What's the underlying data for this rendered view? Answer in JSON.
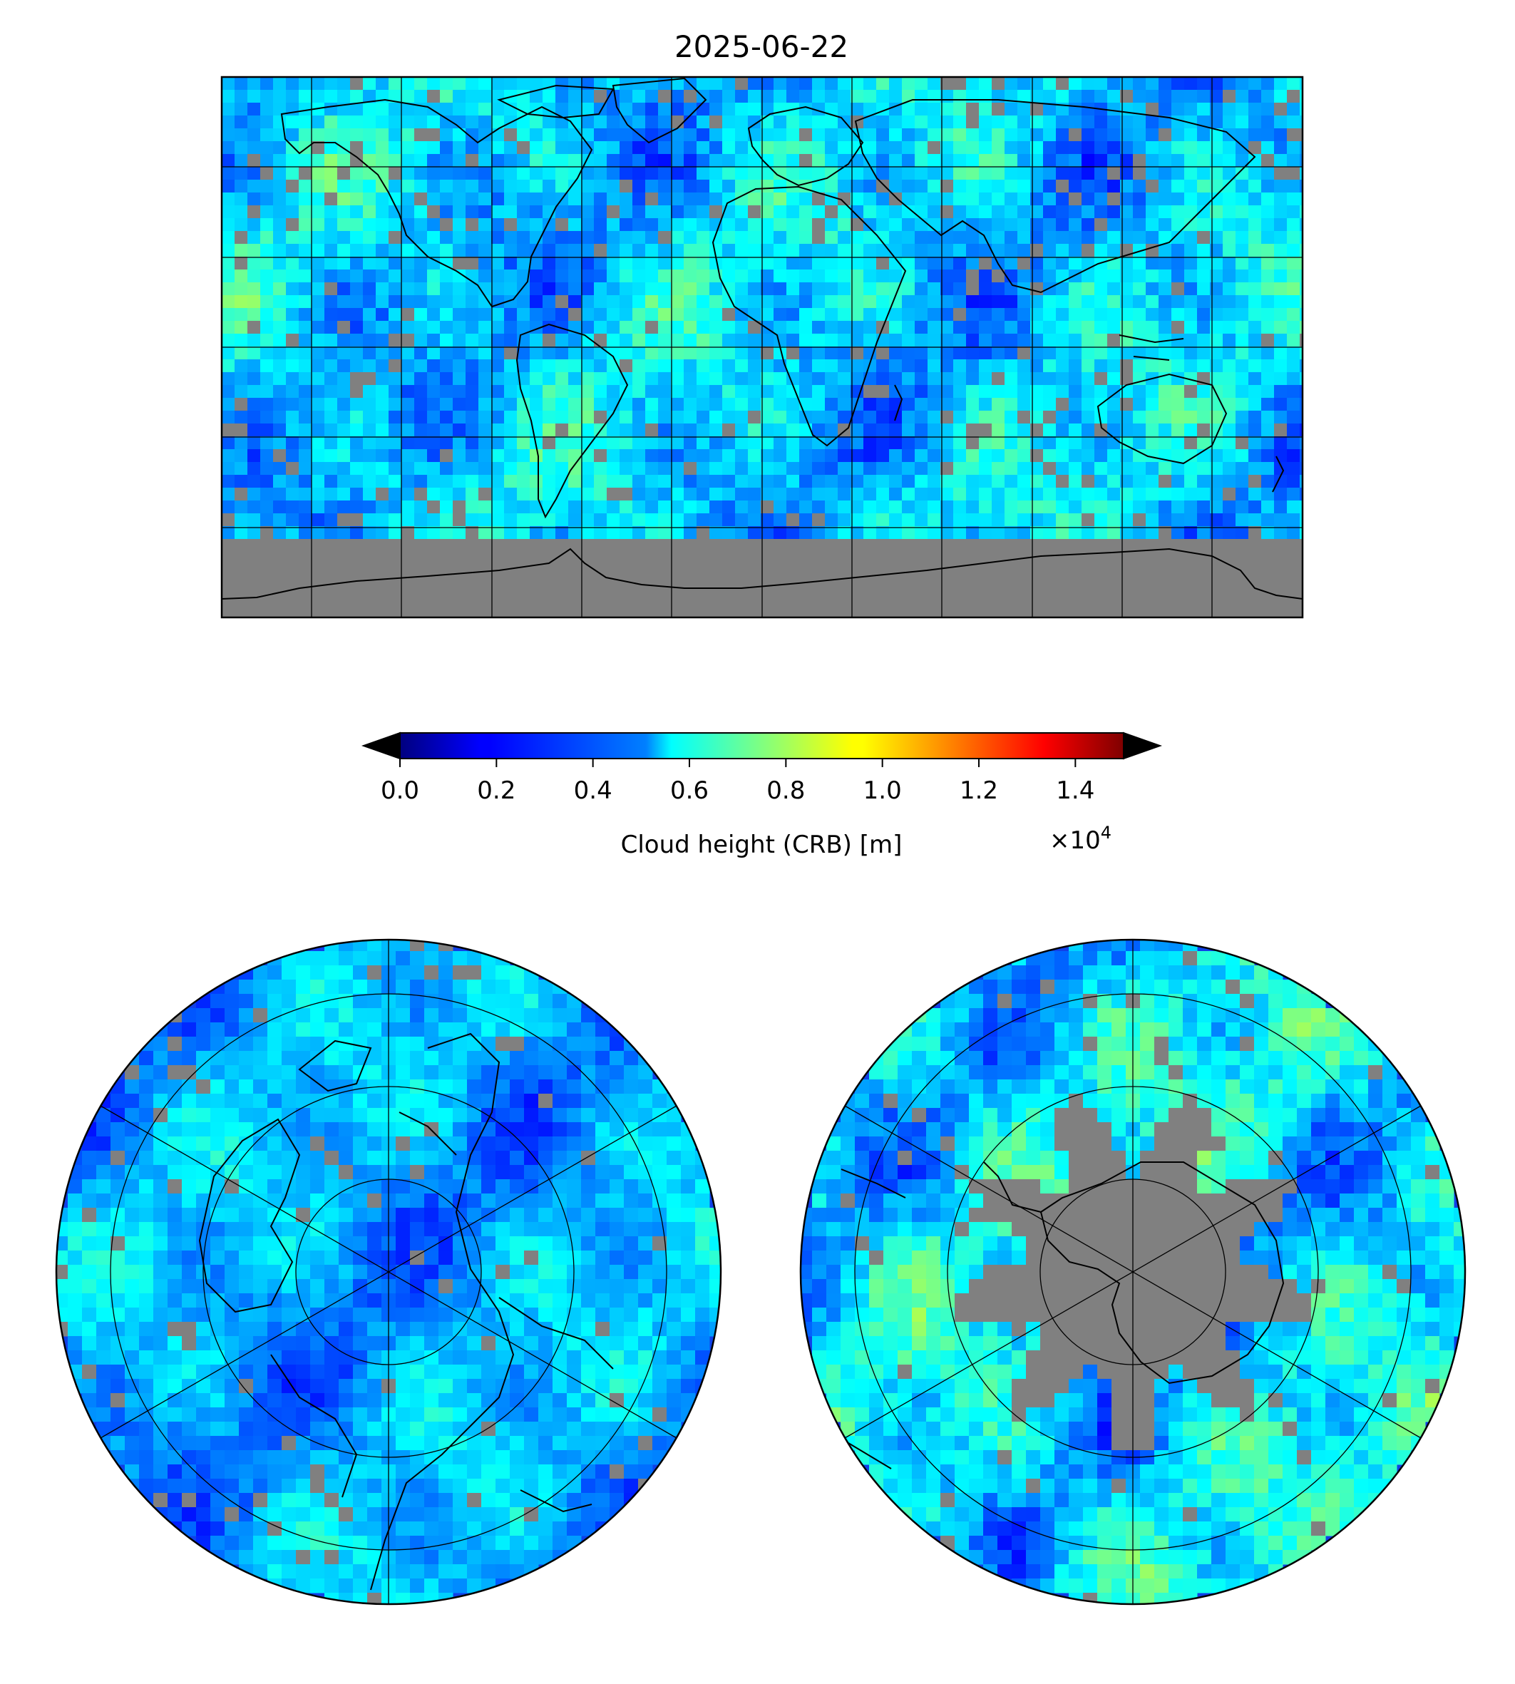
{
  "title": "2025-06-22",
  "colorbar": {
    "label": "Cloud height (CRB) [m]",
    "multiplier": "×10",
    "multiplier_exponent": "4",
    "ticks": [
      "0.0",
      "0.2",
      "0.4",
      "0.6",
      "0.8",
      "1.0",
      "1.2",
      "1.4"
    ],
    "tick_values": [
      0.0,
      0.2,
      0.4,
      0.6,
      0.8,
      1.0,
      1.2,
      1.4
    ],
    "range": [
      0.0,
      1.5
    ],
    "under_color": "#c0c0c0",
    "over_color": "#404040",
    "colormap": "jet"
  },
  "colors": {
    "no_data": "#808080",
    "coastline": "#000000",
    "gridline": "#000000"
  },
  "chart_data": [
    {
      "type": "heatmap",
      "projection": "equirectangular",
      "title": "2025-06-22",
      "variable": "Cloud height (CRB) [m]",
      "lon_range": [
        -180,
        180
      ],
      "lat_range": [
        -90,
        90
      ],
      "grid": true,
      "meridians_every_deg": 30,
      "parallels_every_deg": 30,
      "value_range": [
        0,
        15000
      ]
    },
    {
      "type": "heatmap",
      "projection": "north-polar-stereographic",
      "variable": "Cloud height (CRB) [m]",
      "grid": true,
      "value_range": [
        0,
        15000
      ]
    },
    {
      "type": "heatmap",
      "projection": "south-polar-stereographic",
      "variable": "Cloud height (CRB) [m]",
      "grid": true,
      "value_range": [
        0,
        15000
      ]
    }
  ]
}
